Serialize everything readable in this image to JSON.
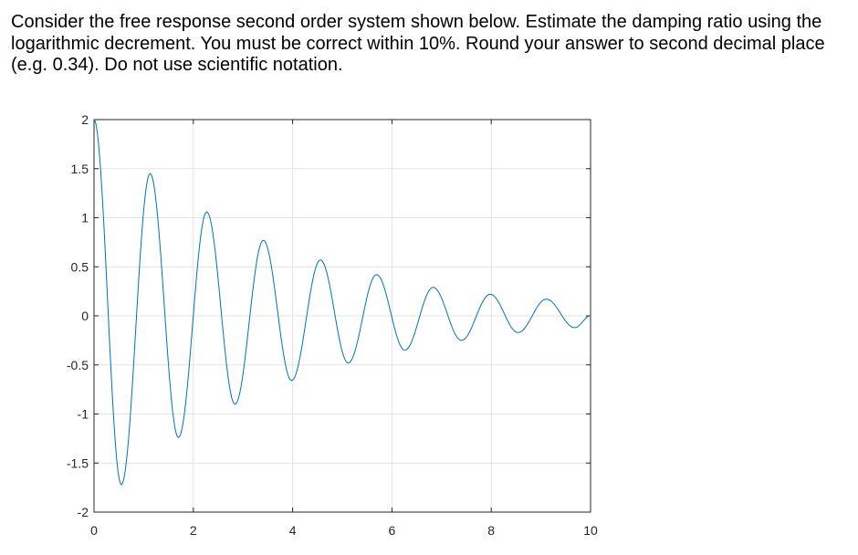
{
  "question": {
    "text": "Consider the free response second order system shown below. Estimate the damping ratio using the logarithmic decrement.  You must be correct within 10%. Round your answer to second decimal place (e.g. 0.34). Do not use scientific notation."
  },
  "chart_data": {
    "type": "line",
    "title": "",
    "xlabel": "",
    "ylabel": "",
    "xlim": [
      0,
      10
    ],
    "ylim": [
      -2,
      2
    ],
    "xticks": [
      0,
      2,
      4,
      6,
      8,
      10
    ],
    "xtick_labels": [
      "0",
      "2",
      "4",
      "6",
      "8",
      "10"
    ],
    "yticks": [
      2,
      1.5,
      1,
      0.5,
      0,
      -0.5,
      -1,
      -1.5,
      -2
    ],
    "ytick_labels": [
      "2",
      "1.5",
      "1",
      "0.5",
      "0",
      "-0.5",
      "-1",
      "-1.5",
      "-2"
    ],
    "grid": true,
    "line_color": "#0072BD",
    "grid_color": "#e3e3e3",
    "axis_color": "#262626",
    "series": [
      {
        "x": [
          0,
          0.55,
          1.13,
          1.7,
          2.27,
          2.84,
          3.41,
          3.98,
          4.56,
          5.12,
          5.69,
          6.26,
          6.83,
          7.4,
          7.98,
          8.54,
          9.11,
          9.68,
          10
        ],
        "y": [
          2.0,
          -1.72,
          1.45,
          -1.24,
          1.06,
          -0.9,
          0.77,
          -0.66,
          0.57,
          -0.48,
          0.42,
          -0.35,
          0.29,
          -0.25,
          0.22,
          -0.17,
          0.17,
          -0.12,
          0.0
        ]
      }
    ]
  }
}
